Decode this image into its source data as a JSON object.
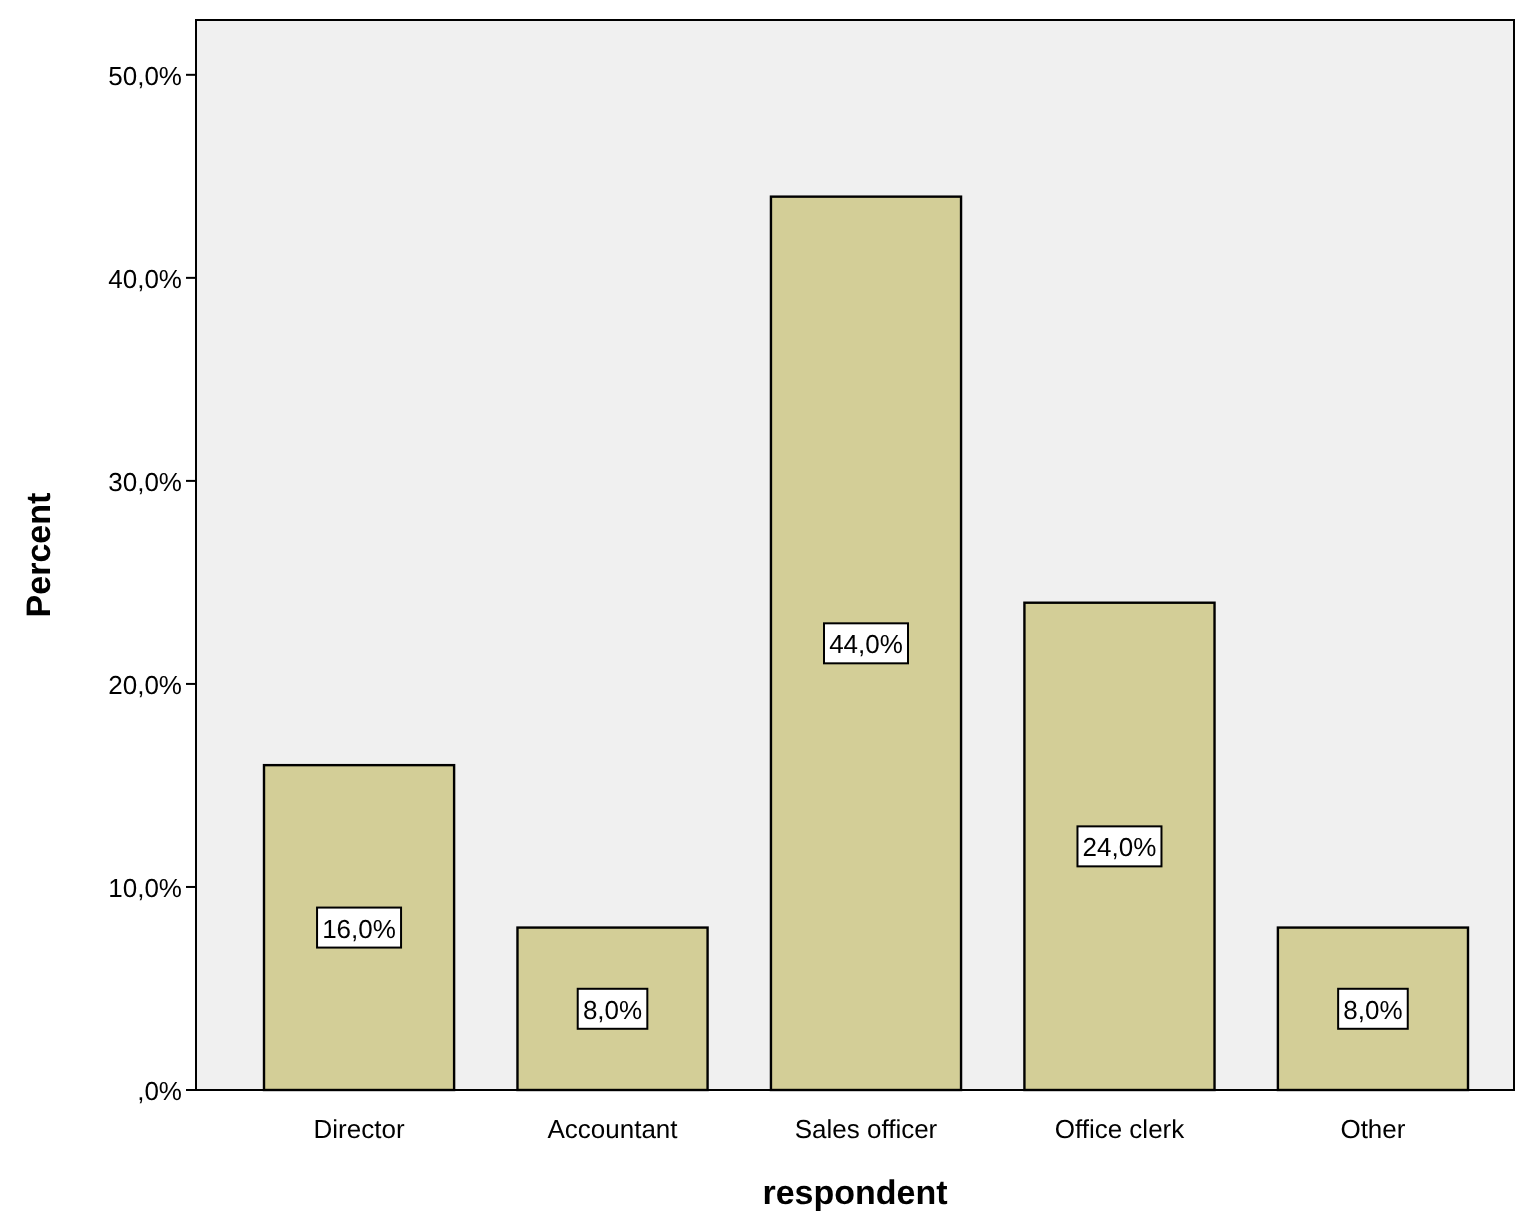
{
  "chart_data": {
    "type": "bar",
    "xlabel": "respondent",
    "ylabel": "Percent",
    "categories": [
      "Director",
      "Accountant",
      "Sales officer",
      "Office clerk",
      "Other"
    ],
    "values": [
      16,
      8,
      44,
      24,
      8
    ],
    "color": "#d3ce97",
    "value_labels": [
      "16,0%",
      "8,0%",
      "44,0%",
      "24,0%",
      "8,0%"
    ],
    "ylim": [
      0,
      52.7
    ],
    "yticks": [
      {
        "value": 0,
        "label": ",0%"
      },
      {
        "value": 10,
        "label": "10,0%"
      },
      {
        "value": 20,
        "label": "20,0%"
      },
      {
        "value": 30,
        "label": "30,0%"
      },
      {
        "value": 40,
        "label": "40,0%"
      },
      {
        "value": 50,
        "label": "50,0%"
      }
    ],
    "grid": false
  }
}
